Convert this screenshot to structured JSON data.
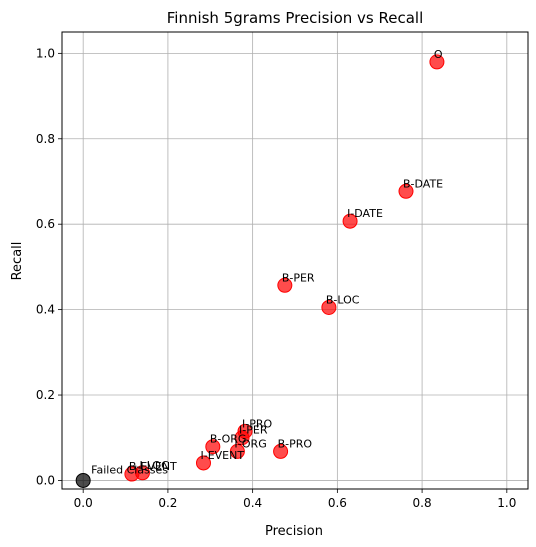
{
  "chart_data": {
    "type": "scatter",
    "title": "Finnish 5grams Precision vs Recall",
    "xlabel": "Precision",
    "ylabel": "Recall",
    "xlim": [
      -0.05,
      1.05
    ],
    "ylim": [
      -0.02,
      1.05
    ],
    "xticks": [
      "0.0",
      "0.2",
      "0.4",
      "0.6",
      "0.8",
      "1.0"
    ],
    "yticks": [
      "0.0",
      "0.2",
      "0.4",
      "0.6",
      "0.8",
      "1.0"
    ],
    "grid": true,
    "colors": {
      "class": "#ff0000",
      "failed": "#000000"
    },
    "points": [
      {
        "label": "O",
        "x": 0.835,
        "y": 0.98
      },
      {
        "label": "B-DATE",
        "x": 0.762,
        "y": 0.677
      },
      {
        "label": "I-DATE",
        "x": 0.63,
        "y": 0.607
      },
      {
        "label": "B-PER",
        "x": 0.476,
        "y": 0.457
      },
      {
        "label": "B-LOC",
        "x": 0.58,
        "y": 0.405
      },
      {
        "label": "I-PRO",
        "x": 0.382,
        "y": 0.115
      },
      {
        "label": "I-PER",
        "x": 0.375,
        "y": 0.1
      },
      {
        "label": "B-ORG",
        "x": 0.306,
        "y": 0.079
      },
      {
        "label": "B-PRO",
        "x": 0.466,
        "y": 0.068
      },
      {
        "label": "I-ORG",
        "x": 0.364,
        "y": 0.068
      },
      {
        "label": "I-EVENT",
        "x": 0.284,
        "y": 0.041
      },
      {
        "label": "B-EVENT",
        "x": 0.115,
        "y": 0.015
      },
      {
        "label": "I-LOC",
        "x": 0.14,
        "y": 0.018
      }
    ],
    "failed_point": {
      "label": "Failed Classes",
      "x": 0.0,
      "y": 0.0
    }
  }
}
